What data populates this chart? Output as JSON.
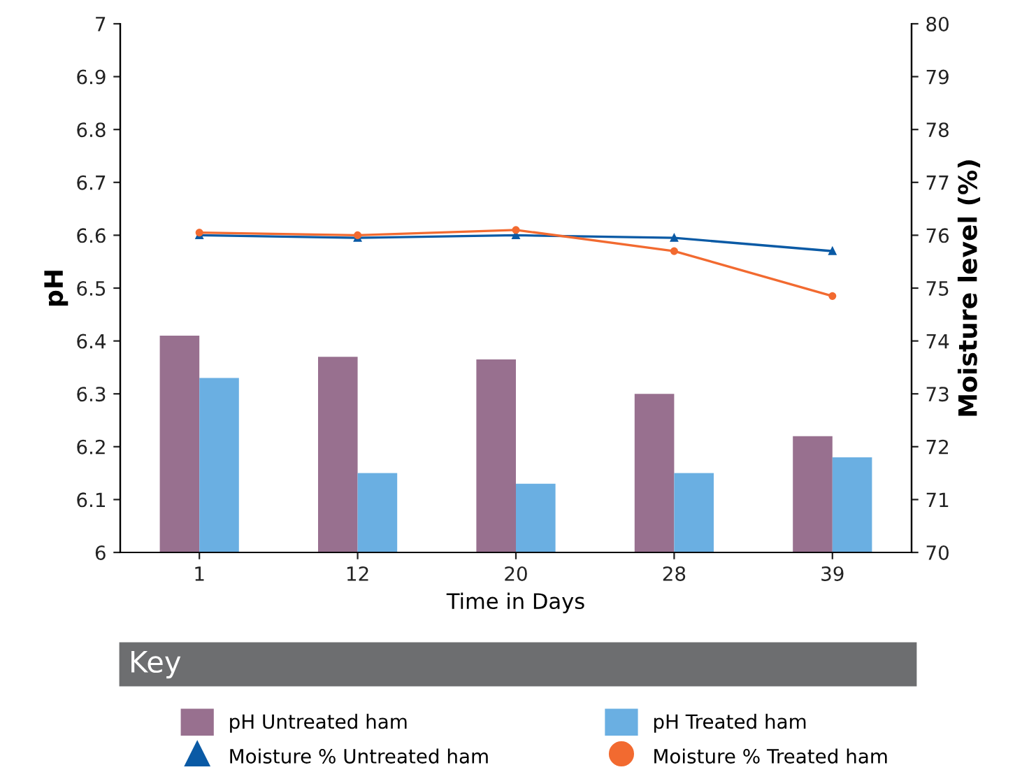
{
  "chart_data": {
    "type": "bar",
    "xlabel": "Time in Days",
    "ylabel": "pH",
    "y2label": "Moisture level (%)",
    "legend_title": "Key",
    "legend": "bottom",
    "grid": false,
    "categories": [
      "1",
      "12",
      "20",
      "28",
      "39"
    ],
    "ylim": [
      6,
      7
    ],
    "yticks": [
      6,
      6.1,
      6.2,
      6.3,
      6.4,
      6.5,
      6.6,
      6.7,
      6.8,
      6.9,
      7
    ],
    "y2lim": [
      70,
      80
    ],
    "y2ticks": [
      70,
      71,
      72,
      73,
      74,
      75,
      76,
      77,
      78,
      79,
      80
    ],
    "series": [
      {
        "name": "pH Untreated ham",
        "color": "#98708f",
        "values": [
          6.41,
          6.37,
          6.365,
          6.3,
          6.22
        ]
      },
      {
        "name": "pH Treated ham",
        "color": "#6aafe2",
        "values": [
          6.33,
          6.15,
          6.13,
          6.15,
          6.18
        ]
      },
      {
        "name": "Moisture % Untreated ham",
        "type": "line",
        "axis": "y2",
        "marker": "triangle",
        "color": "#0a5aa5",
        "values": [
          76.0,
          75.95,
          76.0,
          75.95,
          75.7
        ]
      },
      {
        "name": "Moisture % Treated ham",
        "type": "line",
        "axis": "y2",
        "marker": "circle",
        "color": "#f26a30",
        "values": [
          76.05,
          76.0,
          76.1,
          75.7,
          74.85
        ]
      }
    ]
  }
}
